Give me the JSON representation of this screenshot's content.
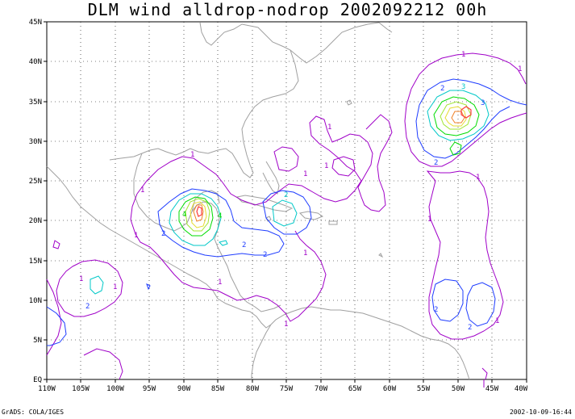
{
  "title": "DLM wind alldrop-nodrop 2002092212 00h",
  "footer": {
    "left": "GrADS: COLA/IGES",
    "right": "2002-10-09-16:44"
  },
  "map": {
    "lon_range": [
      -110,
      -40
    ],
    "lat_range": [
      0,
      45
    ],
    "lat_ticks": [
      "45N",
      "40N",
      "35N",
      "30N",
      "25N",
      "20N",
      "15N",
      "10N",
      "5N",
      "EQ"
    ],
    "lon_ticks": [
      "110W",
      "105W",
      "100W",
      "95W",
      "90W",
      "85W",
      "80W",
      "75W",
      "70W",
      "65W",
      "60W",
      "55W",
      "50W",
      "45W",
      "40W"
    ],
    "grid": "dotted",
    "contour_labels": [
      "1",
      "2",
      "3",
      "4"
    ],
    "colors": {
      "level1": "#a000c8",
      "level2": "#1e3cff",
      "level3": "#00c8c8",
      "level4": "#00dc00",
      "level5": "#a0e632",
      "level6": "#e6dc32",
      "level7": "#f08228",
      "level8": "#fa3c3c",
      "coast": "#a0a0a0"
    }
  }
}
